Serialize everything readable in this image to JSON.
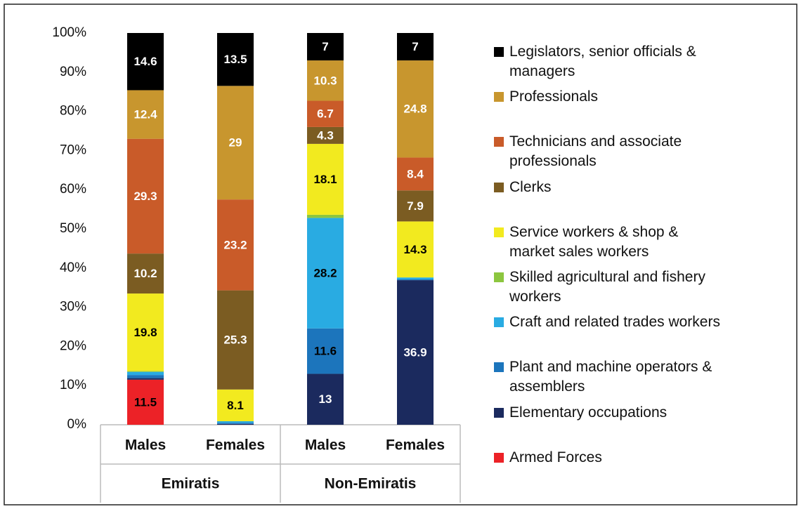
{
  "chart_data": {
    "type": "stacked_bar",
    "categories": [
      "Males",
      "Females",
      "Males",
      "Females"
    ],
    "category_groups": [
      "Emiratis",
      "Non-Emiratis"
    ],
    "ylim": [
      0,
      100
    ],
    "yticks": [
      {
        "value": 0,
        "label": "0%"
      },
      {
        "value": 10,
        "label": "10%"
      },
      {
        "value": 20,
        "label": "20%"
      },
      {
        "value": 30,
        "label": "30%"
      },
      {
        "value": 40,
        "label": "40%"
      },
      {
        "value": 50,
        "label": "50%"
      },
      {
        "value": 60,
        "label": "60%"
      },
      {
        "value": 70,
        "label": "70%"
      },
      {
        "value": 80,
        "label": "80%"
      },
      {
        "value": 90,
        "label": "90%"
      },
      {
        "value": 100,
        "label": "100%"
      }
    ],
    "grid": false,
    "legend": "right",
    "series": [
      {
        "name": "Legislators, senior officials & managers",
        "color": "#000000",
        "label_color": "#ffffff",
        "values": [
          14.6,
          13.5,
          7,
          7
        ]
      },
      {
        "name": "Professionals",
        "color": "#c8962e",
        "label_color": "#ffffff",
        "values": [
          12.4,
          29,
          10.3,
          24.8
        ]
      },
      {
        "name": "Technicians and associate professionals",
        "color": "#c95b29",
        "label_color": "#ffffff",
        "values": [
          29.3,
          23.2,
          6.7,
          8.4
        ]
      },
      {
        "name": "Clerks",
        "color": "#7b5c22",
        "label_color": "#ffffff",
        "values": [
          10.2,
          25.3,
          4.3,
          7.9
        ]
      },
      {
        "name": "Service workers & shop & market sales workers",
        "color": "#f2ea1f",
        "label_color": "#000000",
        "values": [
          19.8,
          8.1,
          18.1,
          14.3
        ]
      },
      {
        "name": "Skilled agricultural and fishery workers",
        "color": "#8cc63f",
        "label_color": "#000000",
        "values": [
          0.2,
          0,
          0.8,
          0
        ]
      },
      {
        "name": "Craft and related trades workers",
        "color": "#29abe2",
        "label_color": "#000000",
        "values": [
          0.8,
          0.4,
          28.2,
          0.5
        ]
      },
      {
        "name": "Plant and machine operators & assemblers",
        "color": "#1c75bc",
        "label_color": "#000000",
        "values": [
          0.8,
          0.3,
          11.6,
          0.2
        ]
      },
      {
        "name": "Elementary occupations",
        "color": "#1b2a5e",
        "label_color": "#ffffff",
        "values": [
          0.4,
          0.2,
          13,
          36.9
        ]
      },
      {
        "name": "Armed Forces",
        "color": "#ec2227",
        "label_color": "#000000",
        "values": [
          11.5,
          0,
          0,
          0
        ]
      }
    ]
  }
}
